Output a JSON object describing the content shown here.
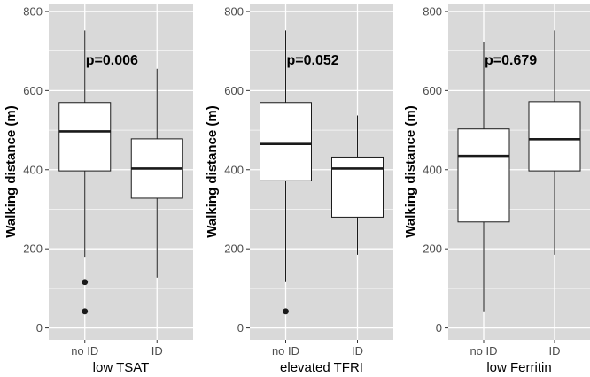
{
  "colors": {
    "panel_bg": "#d9d9d9",
    "grid": "#ffffff",
    "box_fill": "#ffffff",
    "line": "#1a1a1a",
    "tick_text": "#4d4d4d"
  },
  "chart_data": [
    {
      "type": "boxplot",
      "ylabel": "Walking distance (m)",
      "xlabel": "low TSAT",
      "annotation": "p=0.006",
      "categories": [
        "no ID",
        "ID"
      ],
      "ylim": [
        -30,
        820
      ],
      "yticks": [
        0,
        200,
        400,
        600,
        800
      ],
      "yticks_labels": [
        "0",
        "200",
        "400",
        "600",
        "800"
      ],
      "boxes": [
        {
          "min": 180,
          "q1": 397,
          "median": 497,
          "q3": 570,
          "max": 752,
          "outliers": [
            116,
            42
          ]
        },
        {
          "min": 127,
          "q1": 328,
          "median": 403,
          "q3": 478,
          "max": 655,
          "outliers": []
        }
      ]
    },
    {
      "type": "boxplot",
      "ylabel": "Walking distance (m)",
      "xlabel": "elevated TFRI",
      "annotation": "p=0.052",
      "categories": [
        "no ID",
        "ID"
      ],
      "ylim": [
        -30,
        820
      ],
      "yticks": [
        0,
        200,
        400,
        600,
        800
      ],
      "yticks_labels": [
        "0",
        "200",
        "400",
        "600",
        "800"
      ],
      "boxes": [
        {
          "min": 116,
          "q1": 372,
          "median": 465,
          "q3": 570,
          "max": 752,
          "outliers": [
            42
          ]
        },
        {
          "min": 185,
          "q1": 280,
          "median": 403,
          "q3": 432,
          "max": 537,
          "outliers": []
        }
      ]
    },
    {
      "type": "boxplot",
      "ylabel": "Walking distance (m)",
      "xlabel": "low Ferritin",
      "annotation": "p=0.679",
      "categories": [
        "no ID",
        "ID"
      ],
      "ylim": [
        -30,
        820
      ],
      "yticks": [
        0,
        200,
        400,
        600,
        800
      ],
      "yticks_labels": [
        "0",
        "200",
        "400",
        "600",
        "800"
      ],
      "boxes": [
        {
          "min": 42,
          "q1": 268,
          "median": 435,
          "q3": 503,
          "max": 722,
          "outliers": []
        },
        {
          "min": 185,
          "q1": 397,
          "median": 477,
          "q3": 572,
          "max": 752,
          "outliers": []
        }
      ]
    }
  ]
}
